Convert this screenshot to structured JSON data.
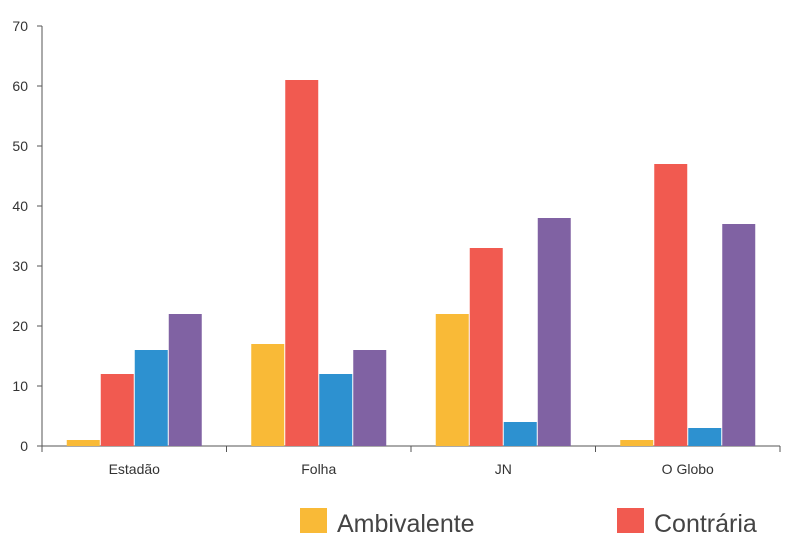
{
  "chart_data": {
    "type": "bar",
    "title": "",
    "xlabel": "",
    "ylabel": "",
    "categories": [
      "Estadão",
      "Folha",
      "JN",
      "O Globo"
    ],
    "ylim": [
      0,
      70
    ],
    "yticks": [
      0,
      10,
      20,
      30,
      40,
      50,
      60,
      70
    ],
    "grid": false,
    "legend_position": "bottom-right",
    "series": [
      {
        "name": "Ambivalente",
        "color": "#F9BA37",
        "values": [
          1,
          17,
          22,
          1
        ]
      },
      {
        "name": "Contrária",
        "color": "#F15A50",
        "values": [
          12,
          61,
          33,
          47
        ]
      },
      {
        "color": "#2D91D0",
        "values": [
          16,
          12,
          4,
          3
        ]
      },
      {
        "color": "#8062A3",
        "values": [
          22,
          16,
          38,
          37
        ]
      }
    ]
  }
}
